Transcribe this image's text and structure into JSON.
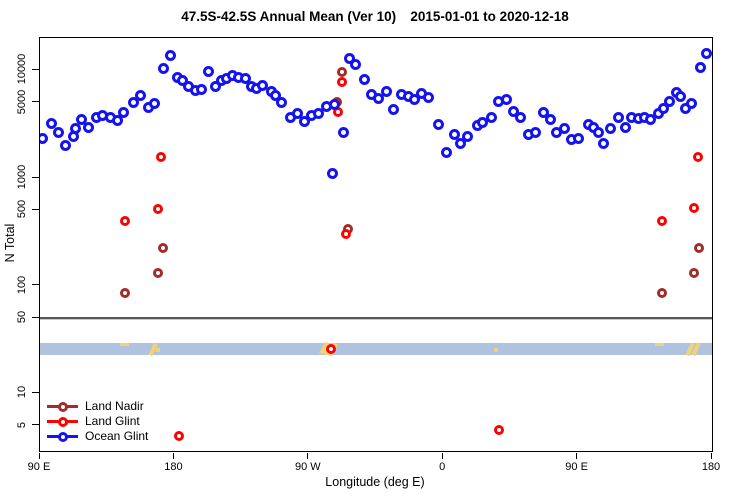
{
  "chart_data": {
    "type": "scatter",
    "title": "47.5S-42.5S Annual Mean (Ver 10)   2015-01-01 to 2020-12-18",
    "xlabel": "Longitude (deg E)",
    "ylabel": "N Total",
    "x_axis": {
      "deg_range": [
        90,
        540
      ],
      "ticks": [
        {
          "deg": 90,
          "label": "90 E"
        },
        {
          "deg": 180,
          "label": "180"
        },
        {
          "deg": 270,
          "label": "90 W"
        },
        {
          "deg": 360,
          "label": "0"
        },
        {
          "deg": 450,
          "label": "90 E"
        },
        {
          "deg": 540,
          "label": "180"
        }
      ]
    },
    "y_axis": {
      "scale": "log",
      "log10_range": [
        0.465,
        4.3
      ],
      "ticks": [
        10000,
        5000,
        1000,
        500,
        100,
        50,
        10,
        5
      ]
    },
    "reference_line": {
      "value": 50,
      "color": "#575757"
    },
    "band": {
      "n_range": [
        22.8,
        29.4
      ],
      "color": "#AFC3E1",
      "mark_color": "#F2D179",
      "marks": [
        {
          "deg": 147.0,
          "kind": "dash"
        },
        {
          "deg": 167.5,
          "kind": "slash"
        },
        {
          "deg": 171.0,
          "kind": "dot"
        },
        {
          "deg": 282.0,
          "kind": "blob"
        },
        {
          "deg": 288.5,
          "kind": "slash"
        },
        {
          "deg": 397.2,
          "kind": "dot"
        },
        {
          "deg": 505.5,
          "kind": "dash"
        },
        {
          "deg": 527.5,
          "kind": "slash"
        },
        {
          "deg": 531.5,
          "kind": "slash"
        }
      ]
    },
    "series": [
      {
        "name": "Land Nadir",
        "color": "#A52A2A",
        "marker_size": 10,
        "points": [
          [
            147.1,
            85
          ],
          [
            168.8,
            130
          ],
          [
            172.2,
            222
          ],
          [
            288.9,
            5050
          ],
          [
            292.2,
            9580
          ],
          [
            296.0,
            334
          ],
          [
            506.5,
            85
          ],
          [
            528.1,
            130
          ],
          [
            531.5,
            222
          ]
        ]
      },
      {
        "name": "Land Glint",
        "color": "#FF0000",
        "marker_size": 10,
        "points": [
          [
            147.1,
            400
          ],
          [
            169.2,
            520
          ],
          [
            171.0,
            1580
          ],
          [
            289.8,
            4080
          ],
          [
            292.2,
            7750
          ],
          [
            294.9,
            300
          ],
          [
            284.9,
            26
          ],
          [
            183.3,
            4.0
          ],
          [
            397.2,
            4.6
          ],
          [
            506.5,
            400
          ],
          [
            528.1,
            530
          ],
          [
            530.8,
            1580
          ]
        ]
      },
      {
        "name": "Ocean Glint",
        "color": "#1414F0",
        "marker_size": 11,
        "points": [
          [
            87.0,
            2300
          ],
          [
            91.8,
            2350
          ],
          [
            97.8,
            3240
          ],
          [
            102.5,
            2670
          ],
          [
            106.9,
            2010
          ],
          [
            112.6,
            2440
          ],
          [
            114.1,
            2910
          ],
          [
            117.9,
            3530
          ],
          [
            122.6,
            2960
          ],
          [
            127.5,
            3610
          ],
          [
            132.0,
            3820
          ],
          [
            136.9,
            3680
          ],
          [
            141.6,
            3430
          ],
          [
            145.8,
            4100
          ],
          [
            152.5,
            5050
          ],
          [
            157.2,
            5860
          ],
          [
            162.8,
            4500
          ],
          [
            166.8,
            4940
          ],
          [
            172.8,
            10500
          ],
          [
            177.5,
            13800
          ],
          [
            181.9,
            8660
          ],
          [
            185.6,
            8070
          ],
          [
            189.6,
            7030
          ],
          [
            193.8,
            6460
          ],
          [
            198.3,
            6600
          ],
          [
            202.5,
            9840
          ],
          [
            207.4,
            7030
          ],
          [
            211.4,
            8070
          ],
          [
            215.2,
            8470
          ],
          [
            219.0,
            8910
          ],
          [
            222.8,
            8660
          ],
          [
            227.3,
            8470
          ],
          [
            231.3,
            7030
          ],
          [
            235.1,
            6840
          ],
          [
            239.1,
            7190
          ],
          [
            244.7,
            6380
          ],
          [
            247.4,
            5860
          ],
          [
            251.8,
            5070
          ],
          [
            257.6,
            3660
          ],
          [
            262.1,
            3930
          ],
          [
            267.0,
            3360
          ],
          [
            271.9,
            3820
          ],
          [
            276.4,
            3930
          ],
          [
            281.7,
            4630
          ],
          [
            286.0,
            1090
          ],
          [
            287.5,
            4800
          ],
          [
            293.4,
            2660
          ],
          [
            297.1,
            13000
          ],
          [
            301.6,
            11400
          ],
          [
            307.2,
            8180
          ],
          [
            312.1,
            5930
          ],
          [
            316.6,
            5450
          ],
          [
            322.2,
            6380
          ],
          [
            326.9,
            4370
          ],
          [
            332.2,
            5930
          ],
          [
            336.9,
            5730
          ],
          [
            341.1,
            5330
          ],
          [
            345.8,
            6030
          ],
          [
            350.3,
            5610
          ],
          [
            356.7,
            3130
          ],
          [
            362.5,
            1710
          ],
          [
            367.4,
            2520
          ],
          [
            371.9,
            2070
          ],
          [
            376.4,
            2440
          ],
          [
            383.1,
            3080
          ],
          [
            386.5,
            3290
          ],
          [
            392.5,
            3610
          ],
          [
            396.9,
            5150
          ],
          [
            402.1,
            5330
          ],
          [
            407.0,
            4160
          ],
          [
            411.6,
            3610
          ],
          [
            417.3,
            2520
          ],
          [
            421.7,
            2670
          ],
          [
            427.3,
            4100
          ],
          [
            431.8,
            3480
          ],
          [
            436.2,
            2620
          ],
          [
            441.1,
            2870
          ],
          [
            446.1,
            2270
          ],
          [
            450.8,
            2320
          ],
          [
            457.2,
            3170
          ],
          [
            460.5,
            2960
          ],
          [
            463.9,
            2670
          ],
          [
            467.2,
            2070
          ],
          [
            471.9,
            2870
          ],
          [
            477.6,
            3610
          ],
          [
            482.0,
            2960
          ],
          [
            486.4,
            3660
          ],
          [
            490.7,
            3550
          ],
          [
            494.7,
            3660
          ],
          [
            498.7,
            3480
          ],
          [
            504.1,
            3930
          ],
          [
            507.7,
            4400
          ],
          [
            511.4,
            5150
          ],
          [
            515.9,
            6280
          ],
          [
            518.6,
            5730
          ],
          [
            522.0,
            4400
          ],
          [
            526.0,
            4970
          ],
          [
            532.2,
            10700
          ],
          [
            536.2,
            14200
          ]
        ]
      }
    ],
    "legend_position": "bottom-left"
  }
}
